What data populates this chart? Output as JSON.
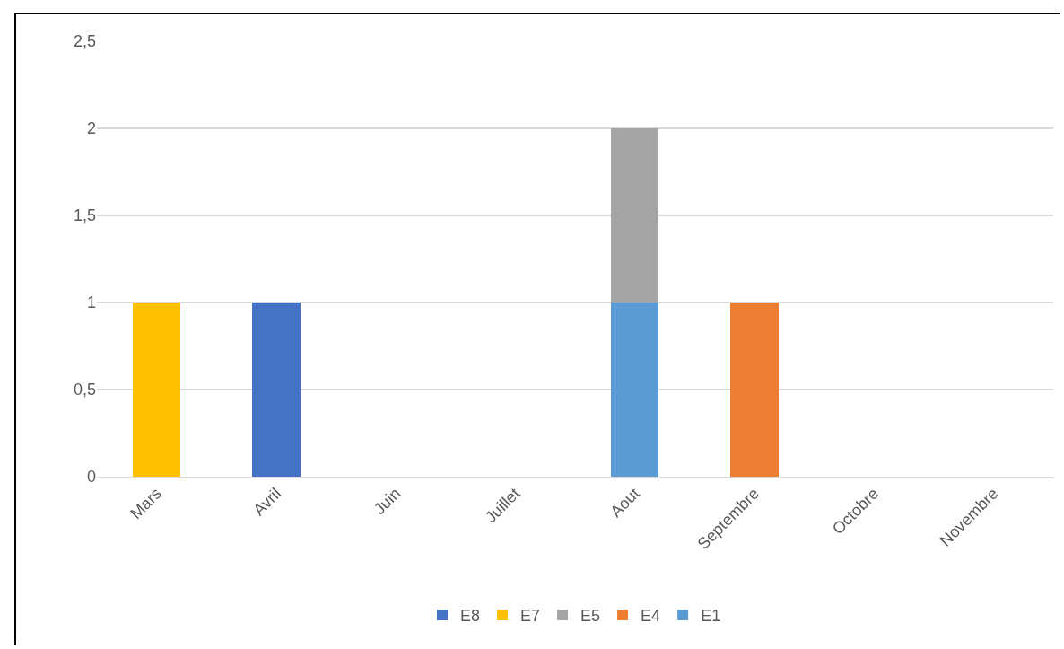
{
  "chart_data": {
    "type": "bar",
    "stacked": true,
    "categories": [
      "Mars",
      "Avril",
      "Juin",
      "Juillet",
      "Aout",
      "Septembre",
      "Octobre",
      "Novembre"
    ],
    "series": [
      {
        "name": "E1",
        "color": "#5b9bd5",
        "values": [
          null,
          null,
          null,
          null,
          1,
          null,
          null,
          null
        ]
      },
      {
        "name": "E4",
        "color": "#ed7d31",
        "values": [
          null,
          null,
          null,
          null,
          null,
          1,
          null,
          null
        ]
      },
      {
        "name": "E5",
        "color": "#a5a5a5",
        "values": [
          null,
          null,
          null,
          null,
          1,
          null,
          null,
          null
        ]
      },
      {
        "name": "E7",
        "color": "#ffc000",
        "values": [
          1,
          null,
          null,
          null,
          null,
          null,
          null,
          null
        ]
      },
      {
        "name": "E8",
        "color": "#4472c4",
        "values": [
          null,
          1,
          null,
          null,
          null,
          null,
          null,
          null
        ]
      }
    ],
    "ylim": [
      0,
      2.5
    ],
    "yticks": [
      0,
      {
        "value": 0.5,
        "label": "0,5"
      },
      1,
      {
        "value": 1.5,
        "label": "1,5"
      },
      2,
      {
        "value": 2.5,
        "label": "2,5"
      }
    ],
    "grid": "y",
    "legend": "bottom"
  }
}
